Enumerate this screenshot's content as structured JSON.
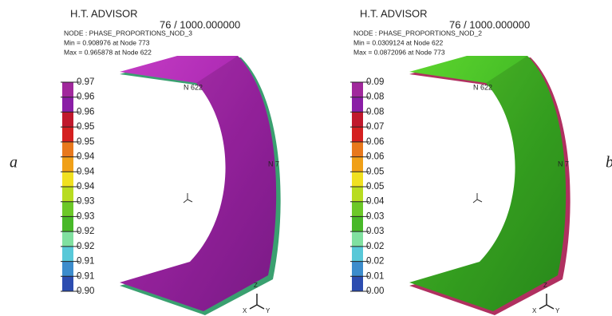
{
  "panels": [
    {
      "letter": "a",
      "title": "H.T. ADVISOR",
      "time": "76 / 1000.000000",
      "node": "NODE : PHASE_PROPORTIONS_NOD_3",
      "min": "Min = 0.908976 at Node 773",
      "max": "Max = 0.965878 at Node 622",
      "legend": [
        "0.97",
        "0.96",
        "0.96",
        "0.95",
        "0.95",
        "0.94",
        "0.94",
        "0.94",
        "0.93",
        "0.93",
        "0.92",
        "0.92",
        "0.91",
        "0.91",
        "0.90"
      ],
      "node_labels": [
        "N 622",
        "N 7"
      ],
      "triad": [
        "Z",
        "X",
        "Y"
      ]
    },
    {
      "letter": "b",
      "title": "H.T. ADVISOR",
      "time": "76 / 1000.000000",
      "node": "NODE : PHASE_PROPORTIONS_NOD_2",
      "min": "Min = 0.0309124 at Node 622",
      "max": "Max = 0.0872096 at Node 773",
      "legend": [
        "0.09",
        "0.08",
        "0.08",
        "0.07",
        "0.06",
        "0.06",
        "0.05",
        "0.05",
        "0.04",
        "0.03",
        "0.03",
        "0.02",
        "0.02",
        "0.01",
        "0.00"
      ],
      "node_labels": [
        "N 622",
        "N 7"
      ],
      "triad": [
        "Z",
        "X",
        "Y"
      ]
    }
  ]
}
